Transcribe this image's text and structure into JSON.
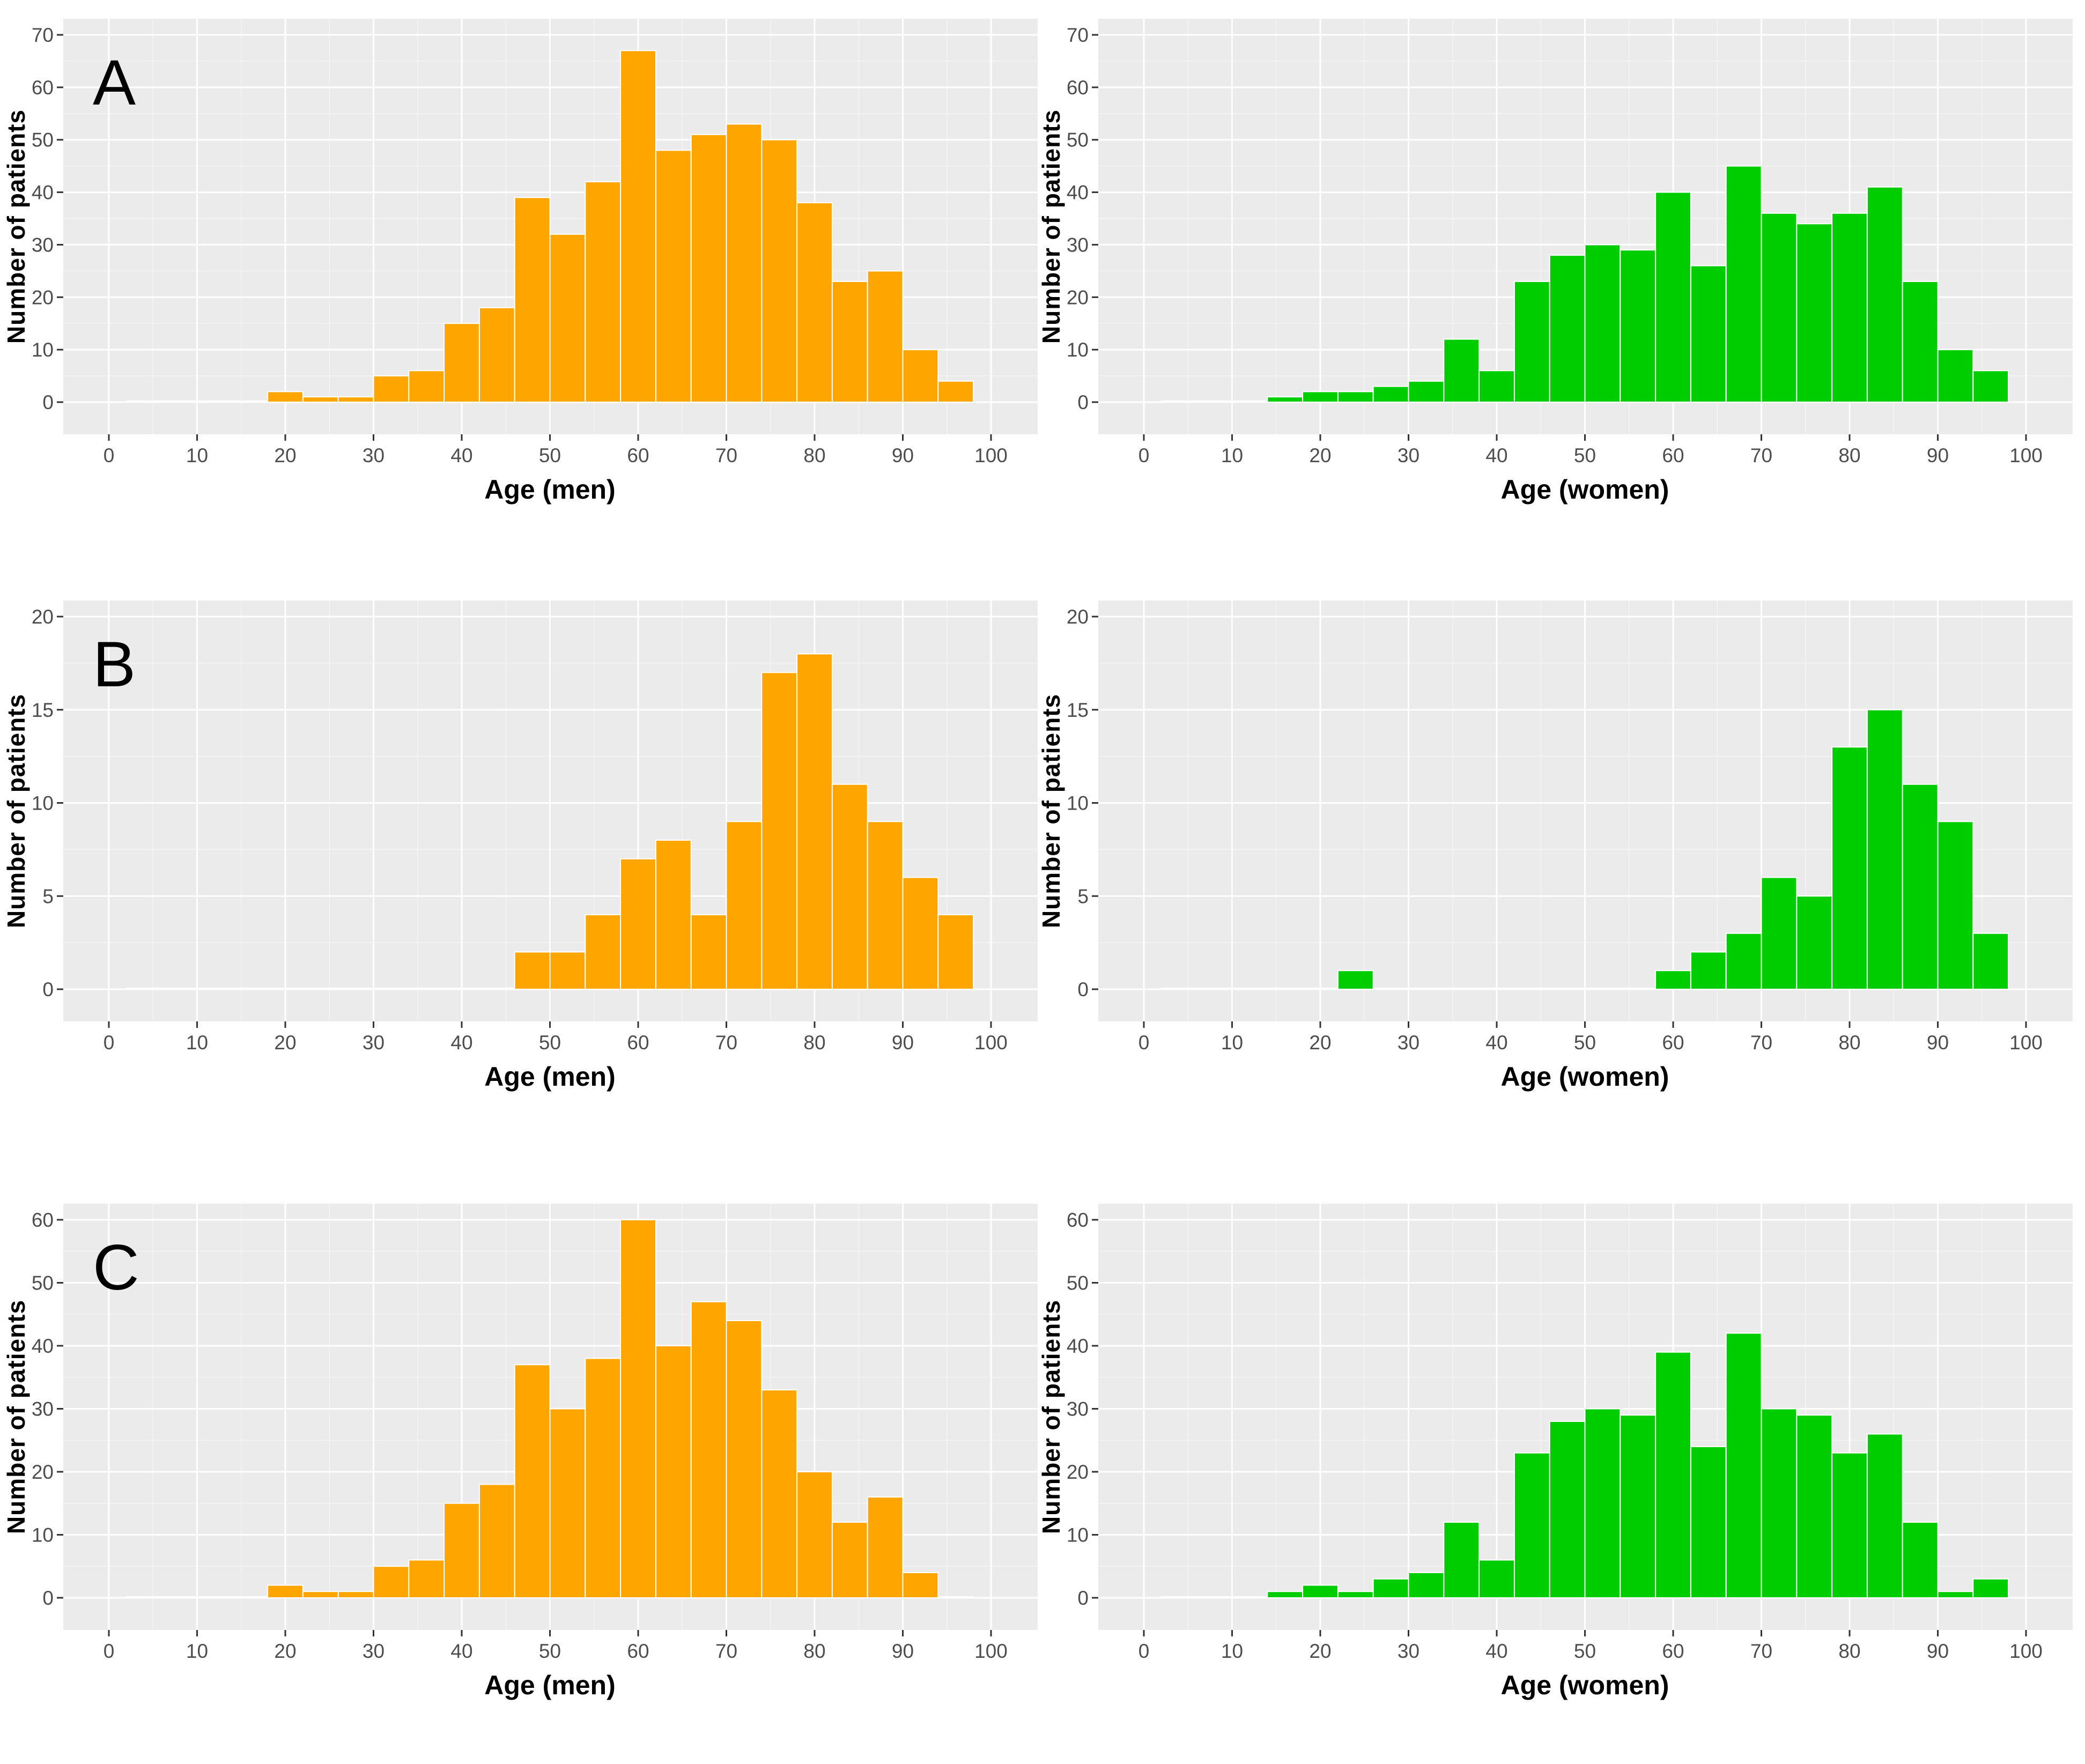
{
  "colors": {
    "men": "#FFA500",
    "women": "#00CD00",
    "panel_bg": "#EBEBEB",
    "grid": "#FFFFFF"
  },
  "chart_data": [
    {
      "id": "A-men",
      "type": "bar",
      "panel_letter": "A",
      "title": "",
      "xlabel": "Age (men)",
      "ylabel": "Number of patients",
      "xlim": [
        0,
        100
      ],
      "ylim": [
        0,
        70
      ],
      "x_ticks": [
        0,
        10,
        20,
        30,
        40,
        50,
        60,
        70,
        80,
        90,
        100
      ],
      "y_ticks": [
        0,
        10,
        20,
        30,
        40,
        50,
        60,
        70
      ],
      "bin_width": 4,
      "bin_start": 2,
      "color": "#FFA500",
      "values": [
        0,
        0,
        0,
        0,
        2,
        1,
        1,
        5,
        6,
        15,
        18,
        39,
        32,
        42,
        67,
        48,
        51,
        53,
        50,
        38,
        23,
        25,
        10,
        4
      ]
    },
    {
      "id": "A-women",
      "type": "bar",
      "panel_letter": "",
      "title": "",
      "xlabel": "Age (women)",
      "ylabel": "Number of patients",
      "xlim": [
        0,
        100
      ],
      "ylim": [
        0,
        70
      ],
      "x_ticks": [
        0,
        10,
        20,
        30,
        40,
        50,
        60,
        70,
        80,
        90,
        100
      ],
      "y_ticks": [
        0,
        10,
        20,
        30,
        40,
        50,
        60,
        70
      ],
      "bin_width": 4,
      "bin_start": 2,
      "color": "#00CD00",
      "values": [
        0,
        0,
        0,
        1,
        2,
        2,
        3,
        4,
        12,
        6,
        23,
        28,
        30,
        29,
        40,
        26,
        45,
        36,
        34,
        36,
        41,
        23,
        10,
        6
      ]
    },
    {
      "id": "B-men",
      "type": "bar",
      "panel_letter": "B",
      "title": "",
      "xlabel": "Age (men)",
      "ylabel": "Number of patients",
      "xlim": [
        0,
        100
      ],
      "ylim": [
        0,
        20
      ],
      "x_ticks": [
        0,
        10,
        20,
        30,
        40,
        50,
        60,
        70,
        80,
        90,
        100
      ],
      "y_ticks": [
        0,
        5,
        10,
        15,
        20
      ],
      "bin_width": 4,
      "bin_start": 2,
      "color": "#FFA500",
      "values": [
        0,
        0,
        0,
        0,
        0,
        0,
        0,
        0,
        0,
        0,
        0,
        2,
        2,
        4,
        7,
        8,
        4,
        9,
        17,
        18,
        11,
        9,
        6,
        4
      ]
    },
    {
      "id": "B-women",
      "type": "bar",
      "panel_letter": "",
      "title": "",
      "xlabel": "Age (women)",
      "ylabel": "Number of patients",
      "xlim": [
        0,
        100
      ],
      "ylim": [
        0,
        20
      ],
      "x_ticks": [
        0,
        10,
        20,
        30,
        40,
        50,
        60,
        70,
        80,
        90,
        100
      ],
      "y_ticks": [
        0,
        5,
        10,
        15,
        20
      ],
      "bin_width": 4,
      "bin_start": 2,
      "color": "#00CD00",
      "values": [
        0,
        0,
        0,
        0,
        0,
        1,
        0,
        0,
        0,
        0,
        0,
        0,
        0,
        0,
        1,
        2,
        3,
        6,
        5,
        13,
        15,
        11,
        9,
        3
      ]
    },
    {
      "id": "C-men",
      "type": "bar",
      "panel_letter": "C",
      "title": "",
      "xlabel": "Age (men)",
      "ylabel": "Number of patients",
      "xlim": [
        0,
        100
      ],
      "ylim": [
        0,
        60
      ],
      "x_ticks": [
        0,
        10,
        20,
        30,
        40,
        50,
        60,
        70,
        80,
        90,
        100
      ],
      "y_ticks": [
        0,
        10,
        20,
        30,
        40,
        50,
        60
      ],
      "bin_width": 4,
      "bin_start": 2,
      "color": "#FFA500",
      "values": [
        0,
        0,
        0,
        0,
        2,
        1,
        1,
        5,
        6,
        15,
        18,
        37,
        30,
        38,
        60,
        40,
        47,
        44,
        33,
        20,
        12,
        16,
        4,
        0
      ]
    },
    {
      "id": "C-women",
      "type": "bar",
      "panel_letter": "",
      "title": "",
      "xlabel": "Age (women)",
      "ylabel": "Number of patients",
      "xlim": [
        0,
        100
      ],
      "ylim": [
        0,
        60
      ],
      "x_ticks": [
        0,
        10,
        20,
        30,
        40,
        50,
        60,
        70,
        80,
        90,
        100
      ],
      "y_ticks": [
        0,
        10,
        20,
        30,
        40,
        50,
        60
      ],
      "bin_width": 4,
      "bin_start": 2,
      "color": "#00CD00",
      "values": [
        0,
        0,
        0,
        1,
        2,
        1,
        3,
        4,
        12,
        6,
        23,
        28,
        30,
        29,
        39,
        24,
        42,
        30,
        29,
        23,
        26,
        12,
        1,
        3
      ]
    }
  ]
}
